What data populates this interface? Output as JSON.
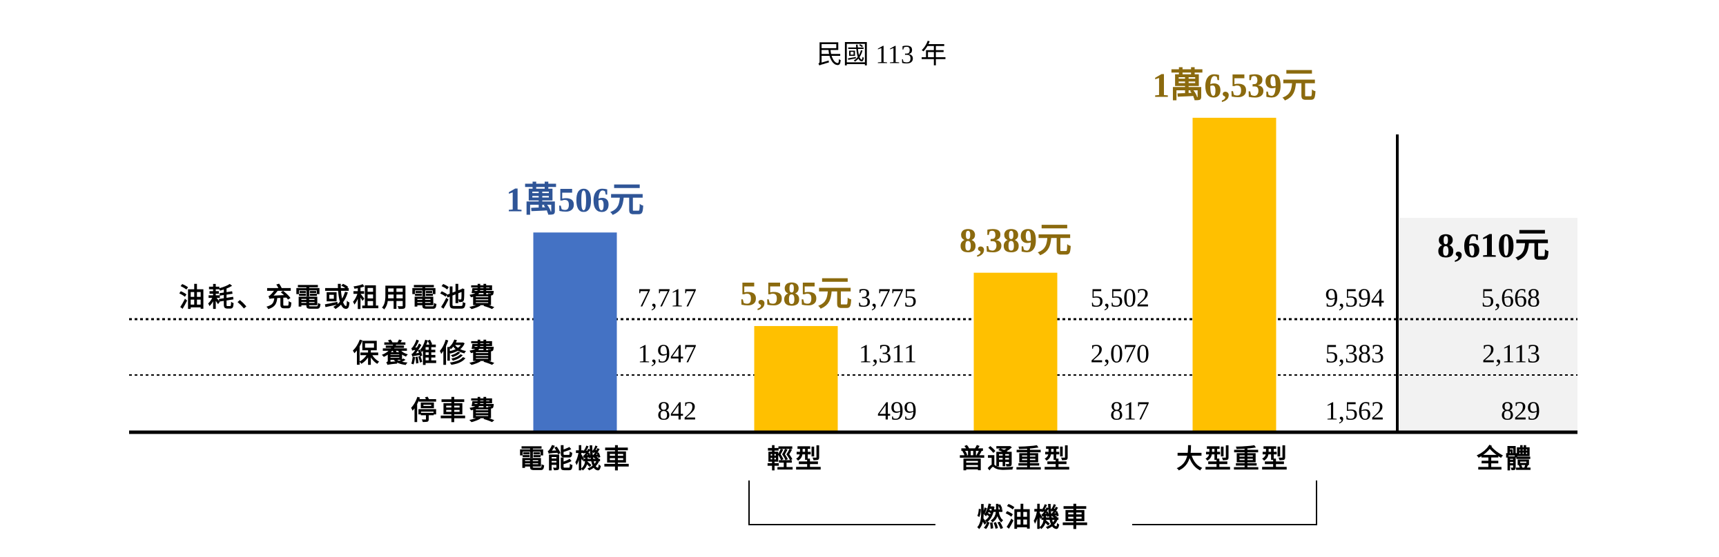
{
  "chart_data": {
    "type": "bar",
    "title": "民國 113 年",
    "categories": [
      "電能機車",
      "輕型",
      "普通重型",
      "大型重型"
    ],
    "values": [
      10506,
      5585,
      8389,
      16539
    ],
    "value_labels": [
      "1萬506元",
      "5,585元",
      "8,389元",
      "1萬6,539元"
    ],
    "colors": [
      "#4472c4",
      "#ffc000",
      "#ffc000",
      "#ffc000"
    ],
    "label_colors": [
      "#2f5597",
      "#8b6a0e",
      "#8b6a0e",
      "#8b6a0e"
    ],
    "group": {
      "label": "燃油機車"
    },
    "breakdown": {
      "rows": [
        "油耗、充電或租用電池費",
        "保養維修費",
        "停車費"
      ],
      "values": [
        [
          "7,717",
          "1,947",
          "842"
        ],
        [
          "3,775",
          "1,311",
          "499"
        ],
        [
          "5,502",
          "2,070",
          "817"
        ],
        [
          "9,594",
          "5,383",
          "1,562"
        ]
      ]
    },
    "overall": {
      "label": "全體",
      "value": 8610,
      "value_label": "8,610元",
      "breakdown": [
        "5,668",
        "2,113",
        "829"
      ]
    }
  }
}
